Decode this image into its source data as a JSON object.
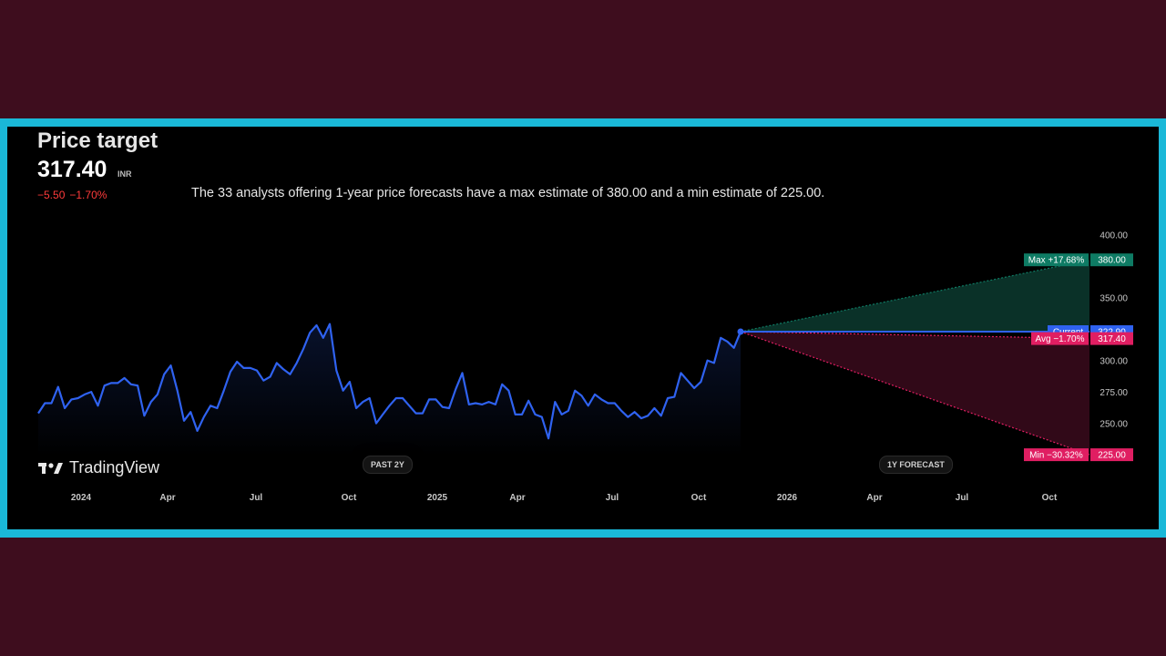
{
  "header": {
    "title": "Price target",
    "price": "317.40",
    "currency": "INR",
    "change_abs": "−5.50",
    "change_pct": "−1.70%",
    "description": "The 33 analysts offering 1-year price forecasts have a max estimate of 380.00 and a min estimate of 225.00."
  },
  "branding": {
    "logo_icon": "tradingview-logo-icon",
    "logo_text": "TradingView"
  },
  "pills": {
    "past": "PAST 2Y",
    "forecast": "1Y FORECAST"
  },
  "tags": {
    "max_label": "Max +17.68%",
    "max_value": "380.00",
    "current_label": "Current",
    "current_value": "322.90",
    "avg_label": "Avg −1.70%",
    "avg_value": "317.40",
    "min_label": "Min −30.32%",
    "min_value": "225.00"
  },
  "colors": {
    "line": "#2f62f0",
    "max": "#0e7b64",
    "current": "#2f62f0",
    "avg_min": "#e01e62",
    "frame": "#1ab8d8",
    "outer": "#3e0d1e"
  },
  "chart_data": {
    "type": "line",
    "x_axis_labels": [
      "2024",
      "Apr",
      "Jul",
      "Oct",
      "2025",
      "Apr",
      "Jul",
      "Oct",
      "2026",
      "Apr",
      "Jul",
      "Oct"
    ],
    "y_axis_labels": [
      "400.00",
      "350.00",
      "300.00",
      "275.00",
      "250.00"
    ],
    "y_axis_values": [
      400,
      350,
      300,
      275,
      250
    ],
    "ylim": [
      225,
      400
    ],
    "grid": false,
    "series": [
      {
        "values": [
          258,
          266,
          266,
          279,
          262,
          269,
          270,
          273,
          275,
          264,
          280,
          282,
          282,
          286,
          281,
          280,
          256,
          267,
          273,
          289,
          296,
          276,
          252,
          259,
          244,
          255,
          264,
          262,
          276,
          291,
          299,
          294,
          294,
          292,
          284,
          287,
          298,
          293,
          289,
          298,
          309,
          322,
          328,
          318,
          329,
          292,
          276,
          283,
          262,
          267,
          270,
          250,
          257,
          264,
          270,
          270,
          264,
          258,
          258,
          269,
          269,
          263,
          262,
          277,
          290,
          265,
          266,
          265,
          267,
          265,
          281,
          276,
          257,
          257,
          268,
          257,
          255,
          238,
          267,
          257,
          260,
          276,
          272,
          264,
          273,
          269,
          266,
          266,
          260,
          255,
          259,
          254,
          256,
          262,
          256,
          270,
          271,
          290,
          284,
          278,
          283,
          300,
          298,
          318,
          315,
          310,
          322.9
        ]
      }
    ],
    "forecast": {
      "max": 380.0,
      "current": 322.9,
      "avg": 317.4,
      "min": 225.0
    }
  }
}
